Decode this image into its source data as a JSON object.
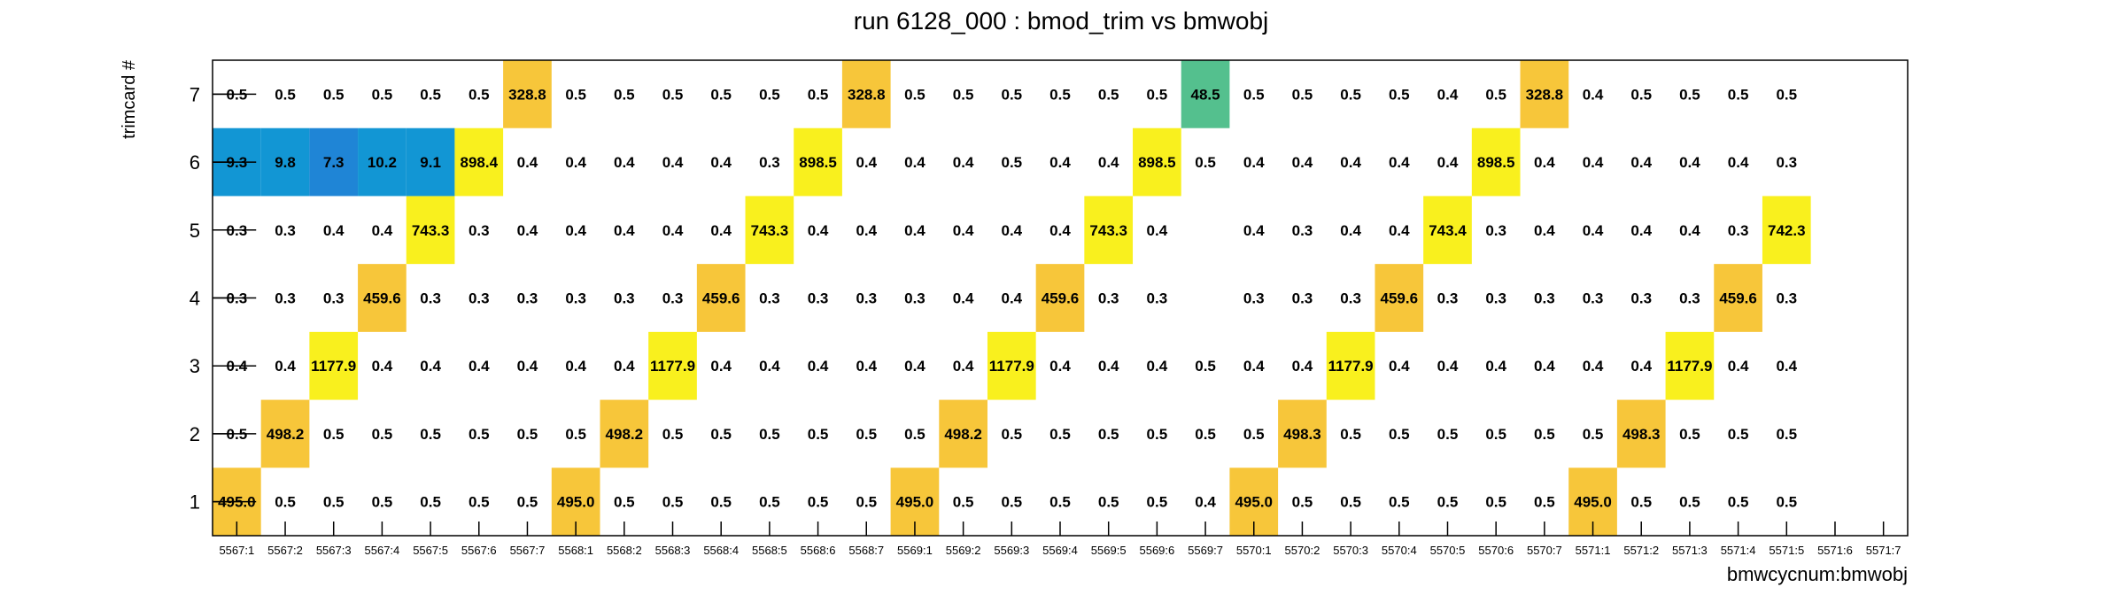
{
  "chart_data": {
    "type": "heatmap",
    "title": "run 6128_000 : bmod_trim vs bmwobj",
    "xlabel": "bmwcycnum:bmwobj",
    "ylabel": "trimcard #",
    "x_categories": [
      "5567:1",
      "5567:2",
      "5567:3",
      "5567:4",
      "5567:5",
      "5567:6",
      "5567:7",
      "5568:1",
      "5568:2",
      "5568:3",
      "5568:4",
      "5568:5",
      "5568:6",
      "5568:7",
      "5569:1",
      "5569:2",
      "5569:3",
      "5569:4",
      "5569:5",
      "5569:6",
      "5569:7",
      "5570:1",
      "5570:2",
      "5570:3",
      "5570:4",
      "5570:5",
      "5570:6",
      "5570:7",
      "5571:1",
      "5571:2",
      "5571:3",
      "5571:4",
      "5571:5",
      "5571:6",
      "5571:7"
    ],
    "y_categories": [
      "1",
      "2",
      "3",
      "4",
      "5",
      "6",
      "7"
    ],
    "values": {
      "1": [
        495.0,
        0.5,
        0.5,
        0.5,
        0.5,
        0.5,
        0.5,
        495.0,
        0.5,
        0.5,
        0.5,
        0.5,
        0.5,
        0.5,
        495.0,
        0.5,
        0.5,
        0.5,
        0.5,
        0.5,
        0.4,
        495.0,
        0.5,
        0.5,
        0.5,
        0.5,
        0.5,
        0.5,
        495.0,
        0.5,
        0.5,
        0.5,
        0.5,
        null,
        null
      ],
      "2": [
        0.5,
        498.2,
        0.5,
        0.5,
        0.5,
        0.5,
        0.5,
        0.5,
        498.2,
        0.5,
        0.5,
        0.5,
        0.5,
        0.5,
        0.5,
        498.2,
        0.5,
        0.5,
        0.5,
        0.5,
        0.5,
        0.5,
        498.3,
        0.5,
        0.5,
        0.5,
        0.5,
        0.5,
        0.5,
        498.3,
        0.5,
        0.5,
        0.5,
        null,
        null
      ],
      "3": [
        0.4,
        0.4,
        1177.9,
        0.4,
        0.4,
        0.4,
        0.4,
        0.4,
        0.4,
        1177.9,
        0.4,
        0.4,
        0.4,
        0.4,
        0.4,
        0.4,
        1177.9,
        0.4,
        0.4,
        0.4,
        0.5,
        0.4,
        0.4,
        1177.9,
        0.4,
        0.4,
        0.4,
        0.4,
        0.4,
        0.4,
        1177.9,
        0.4,
        0.4,
        null,
        null
      ],
      "4": [
        0.3,
        0.3,
        0.3,
        459.6,
        0.3,
        0.3,
        0.3,
        0.3,
        0.3,
        0.3,
        459.6,
        0.3,
        0.3,
        0.3,
        0.3,
        0.4,
        0.4,
        459.6,
        0.3,
        0.3,
        null,
        0.3,
        0.3,
        0.3,
        459.6,
        0.3,
        0.3,
        0.3,
        0.3,
        0.3,
        0.3,
        459.6,
        0.3,
        null,
        null
      ],
      "5": [
        0.3,
        0.3,
        0.4,
        0.4,
        743.3,
        0.3,
        0.4,
        0.4,
        0.4,
        0.4,
        0.4,
        743.3,
        0.4,
        0.4,
        0.4,
        0.4,
        0.4,
        0.4,
        743.3,
        0.4,
        null,
        0.4,
        0.3,
        0.4,
        0.4,
        743.4,
        0.3,
        0.4,
        0.4,
        0.4,
        0.4,
        0.3,
        742.3,
        null,
        null
      ],
      "6": [
        9.3,
        9.8,
        7.3,
        10.2,
        9.1,
        898.4,
        0.4,
        0.4,
        0.4,
        0.4,
        0.4,
        0.3,
        898.5,
        0.4,
        0.4,
        0.4,
        0.5,
        0.4,
        0.4,
        898.5,
        0.5,
        0.4,
        0.4,
        0.4,
        0.4,
        0.4,
        898.5,
        0.4,
        0.4,
        0.4,
        0.4,
        0.4,
        0.3,
        null,
        null
      ],
      "7": [
        0.5,
        0.5,
        0.5,
        0.5,
        0.5,
        0.5,
        328.8,
        0.5,
        0.5,
        0.5,
        0.5,
        0.5,
        0.5,
        328.8,
        0.5,
        0.5,
        0.5,
        0.5,
        0.5,
        0.5,
        48.5,
        0.5,
        0.5,
        0.5,
        0.5,
        0.4,
        0.5,
        328.8,
        0.4,
        0.5,
        0.5,
        0.5,
        0.5,
        null,
        null
      ]
    },
    "colors": {
      "frame": "#000000",
      "text": "#000000",
      "blue": "#1296d4",
      "dark_blue": "#1f85d6",
      "green": "#54c08e",
      "amber": "#f7c63a",
      "yellow": "#f9f01e"
    },
    "grid": false,
    "legend": "none"
  }
}
